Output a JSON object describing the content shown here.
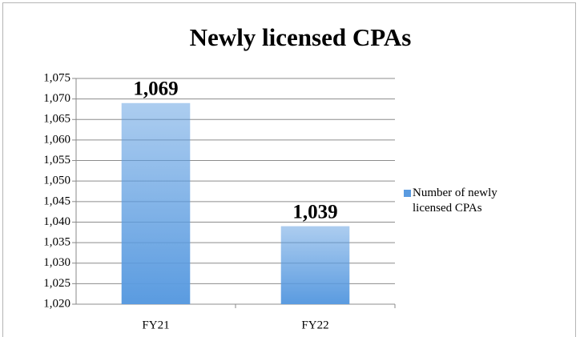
{
  "chart_data": {
    "type": "bar",
    "title": "Newly licensed CPAs",
    "categories": [
      "FY21",
      "FY22"
    ],
    "series": [
      {
        "name": "Number of newly licensed CPAs",
        "color": "#5a9be0",
        "values": [
          1069,
          1039
        ],
        "value_labels": [
          "1,069",
          "1,039"
        ]
      }
    ],
    "ylim": [
      1020,
      1075
    ],
    "yticks": [
      {
        "value": 1020,
        "label": "1,020"
      },
      {
        "value": 1025,
        "label": "1,025"
      },
      {
        "value": 1030,
        "label": "1,030"
      },
      {
        "value": 1035,
        "label": "1,035"
      },
      {
        "value": 1040,
        "label": "1,040"
      },
      {
        "value": 1045,
        "label": "1,045"
      },
      {
        "value": 1050,
        "label": "1,050"
      },
      {
        "value": 1055,
        "label": "1,055"
      },
      {
        "value": 1060,
        "label": "1,060"
      },
      {
        "value": 1065,
        "label": "1,065"
      },
      {
        "value": 1070,
        "label": "1,070"
      },
      {
        "value": 1075,
        "label": "1,075"
      }
    ],
    "grid": true,
    "legend": "right"
  }
}
